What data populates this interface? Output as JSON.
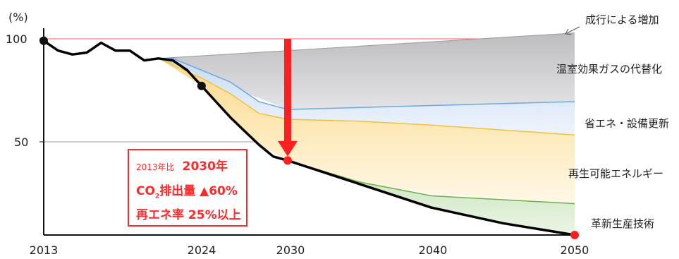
{
  "chart_data": {
    "type": "area",
    "title": "",
    "xlabel": "",
    "ylabel": "(%)",
    "xlim": [
      2013,
      2050
    ],
    "ylim": [
      0,
      100
    ],
    "x_ticks": [
      "2013",
      "2024",
      "2030",
      "2040",
      "2050"
    ],
    "y_ticks": [
      "100",
      "50"
    ],
    "grid": "horizontal at 100 and 50",
    "reference_line": {
      "y": 100,
      "color": "#ff4d4d"
    },
    "bau_label": "成行による増加",
    "emissions_line": {
      "x": [
        2013,
        2014,
        2015,
        2016,
        2017,
        2018,
        2019,
        2020,
        2021,
        2022,
        2023,
        2024,
        2025,
        2026,
        2027,
        2028,
        2029,
        2030,
        2035,
        2040,
        2045,
        2050
      ],
      "y": [
        99,
        94,
        92,
        93,
        98,
        94,
        94,
        89,
        90,
        89,
        84,
        76,
        68,
        60,
        53,
        46,
        40,
        38,
        26,
        14,
        6,
        0
      ]
    },
    "bands": [
      {
        "name": "温室効果ガスの代替化",
        "color": "#cdcdcf",
        "x": [
          2021,
          2030,
          2050
        ],
        "upper": [
          90,
          94,
          103
        ],
        "lower": [
          90,
          64,
          68
        ]
      },
      {
        "name": "省エネ・設備更新",
        "color": "#dbe8f8",
        "edge": "#6fa8dc",
        "x": [
          2021,
          2022,
          2024,
          2026,
          2028,
          2030,
          2040,
          2050
        ],
        "upper": [
          90,
          90,
          84,
          78,
          68,
          64,
          66,
          68
        ],
        "lower": [
          90,
          89,
          80,
          72,
          62,
          59,
          56,
          51
        ]
      },
      {
        "name": "再生可能エネルギー",
        "color": "#fde7b4",
        "edge": "#f0c040",
        "x": [
          2021,
          2024,
          2026,
          2028,
          2030,
          2035,
          2040,
          2050
        ],
        "upper": [
          90,
          80,
          72,
          62,
          59,
          58,
          56,
          51
        ],
        "lower": [
          90,
          76,
          60,
          46,
          38,
          27,
          21,
          16
        ]
      },
      {
        "name": "革新生産技術",
        "color": "#d9ecd0",
        "edge": "#70ad47",
        "x": [
          2030,
          2035,
          2040,
          2045,
          2050
        ],
        "upper": [
          38,
          27,
          20,
          18,
          16
        ],
        "lower": [
          38,
          26,
          14,
          6,
          0
        ]
      }
    ],
    "markers": [
      {
        "x": 2013,
        "y": 99,
        "color": "#111111"
      },
      {
        "x": 2024,
        "y": 76,
        "color": "#111111"
      },
      {
        "x": 2030,
        "y": 38,
        "color": "#ff1f1f"
      },
      {
        "x": 2050,
        "y": 0,
        "color": "#ff1f1f"
      }
    ],
    "arrow": {
      "x": 2030,
      "from_y": 100,
      "to_y": 40,
      "color": "#ff1f1f"
    },
    "callout": {
      "line1_small": "2013年比",
      "line1_big": "2030年",
      "line2_co": "CO",
      "line2_sub": "2",
      "line2_rest": "排出量 ▲60%",
      "line3": "再エネ率 25%以上"
    }
  }
}
